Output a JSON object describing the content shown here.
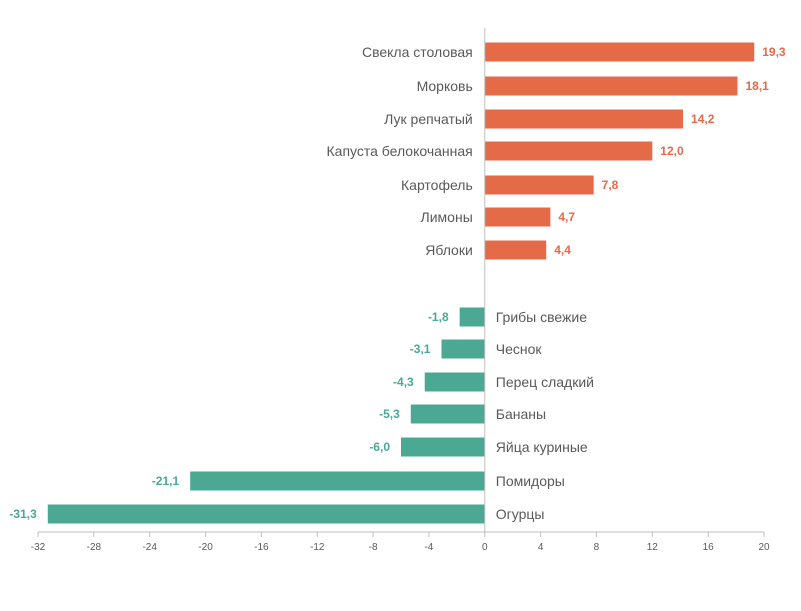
{
  "chart_data": {
    "type": "bar",
    "orientation": "horizontal",
    "categories": [
      "Свекла столовая",
      "Морковь",
      "Лук репчатый",
      "Капуста белокочанная",
      "Картофель",
      "Лимоны",
      "Яблоки",
      "Грибы свежие",
      "Чеснок",
      "Перец сладкий",
      "Бананы",
      "Яйца куриные",
      "Помидоры",
      "Огурцы"
    ],
    "values": [
      19.3,
      18.1,
      14.2,
      12.0,
      7.8,
      4.7,
      4.4,
      -1.8,
      -3.1,
      -4.3,
      -5.3,
      -6.0,
      -21.1,
      -31.3
    ],
    "value_labels": [
      "19,3",
      "18,1",
      "14,2",
      "12,0",
      "7,8",
      "4,7",
      "4,4",
      "-1,8",
      "-3,1",
      "-4,3",
      "-5,3",
      "-6,0",
      "-21,1",
      "-31,3"
    ],
    "xlim": [
      -32,
      20
    ],
    "xticks": [
      -32,
      -28,
      -24,
      -20,
      -16,
      -12,
      -8,
      -4,
      0,
      4,
      8,
      12,
      16,
      20
    ],
    "xtick_labels": [
      "-32",
      "-28",
      "-24",
      "-20",
      "-16",
      "-12",
      "-8",
      "-4",
      "0",
      "4",
      "8",
      "12",
      "16",
      "20"
    ],
    "title": "",
    "xlabel": "",
    "ylabel": "",
    "grid": false,
    "colors": {
      "positive": "#E46A48",
      "negative": "#4BA893",
      "axis": "#BFBFBF",
      "label": "#595959"
    }
  }
}
